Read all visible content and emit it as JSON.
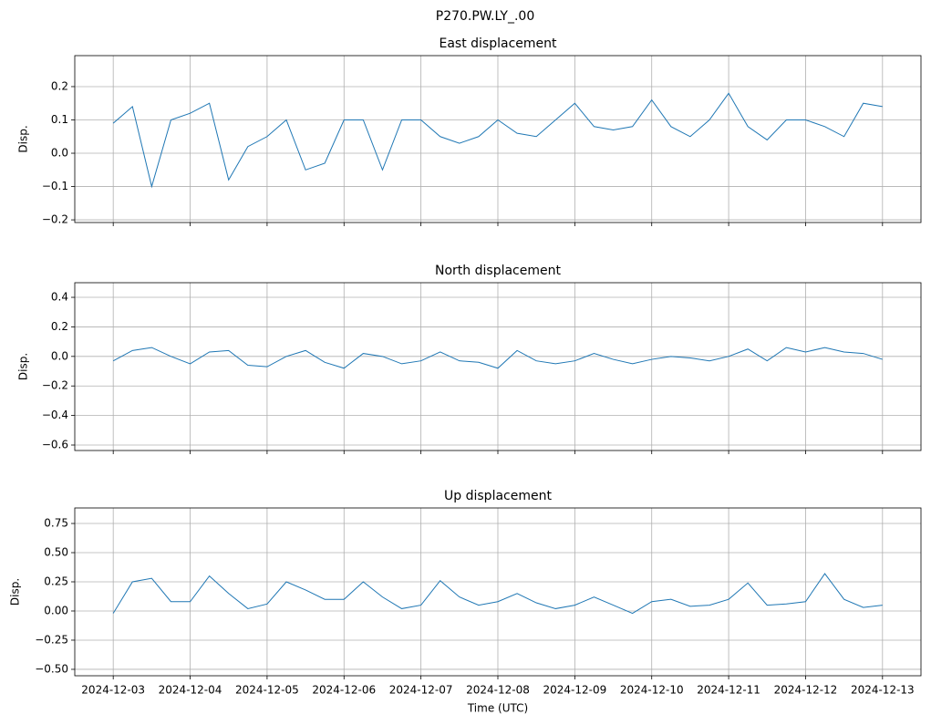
{
  "title": "P270.PW.LY_.00",
  "chart_data": [
    {
      "type": "line",
      "title": "East displacement",
      "y_label": "Disp.",
      "grid": true,
      "xlim": [
        -0.5,
        10.5
      ],
      "xticks": [
        0,
        1,
        2,
        3,
        4,
        5,
        6,
        7,
        8,
        9,
        10
      ],
      "ylim": [
        -0.208,
        0.293
      ],
      "yticks": [
        {
          "value": -0.2,
          "label": "−0.2"
        },
        {
          "value": -0.1,
          "label": "−0.1"
        },
        {
          "value": 0,
          "label": "0.0"
        },
        0.1,
        0.2
      ],
      "x": [
        0,
        0.25,
        0.5,
        0.75,
        1,
        1.25,
        1.5,
        1.75,
        2,
        2.25,
        2.5,
        2.75,
        3,
        3.25,
        3.5,
        3.75,
        4,
        4.25,
        4.5,
        4.75,
        5,
        5.25,
        5.5,
        5.75,
        6,
        6.25,
        6.5,
        6.75,
        7,
        7.25,
        7.5,
        7.75,
        8,
        8.25,
        8.5,
        8.75,
        9,
        9.25,
        9.5,
        9.75,
        10
      ],
      "series": [
        {
          "name": "East",
          "color": "#1f77b4",
          "values": [
            0.09,
            0.14,
            -0.1,
            0.1,
            0.12,
            0.15,
            -0.08,
            0.02,
            0.05,
            0.1,
            -0.05,
            -0.03,
            0.1,
            0.1,
            -0.05,
            0.1,
            0.1,
            0.05,
            0.03,
            0.05,
            0.1,
            0.06,
            0.05,
            0.1,
            0.15,
            0.08,
            0.07,
            0.08,
            0.16,
            0.08,
            0.05,
            0.1,
            0.18,
            0.08,
            0.04,
            0.1,
            0.1,
            0.08,
            0.05,
            0.15,
            0.14
          ]
        }
      ]
    },
    {
      "type": "line",
      "title": "North displacement",
      "y_label": "Disp.",
      "grid": true,
      "xlim": [
        -0.5,
        10.5
      ],
      "xticks": [
        0,
        1,
        2,
        3,
        4,
        5,
        6,
        7,
        8,
        9,
        10
      ],
      "ylim": [
        -0.637,
        0.499
      ],
      "yticks": [
        {
          "value": -0.6,
          "label": "−0.6"
        },
        {
          "value": -0.4,
          "label": "−0.4"
        },
        {
          "value": -0.2,
          "label": "−0.2"
        },
        {
          "value": 0,
          "label": "0.0"
        },
        0.2,
        0.4
      ],
      "x": [
        0,
        0.25,
        0.5,
        0.75,
        1,
        1.25,
        1.5,
        1.75,
        2,
        2.25,
        2.5,
        2.75,
        3,
        3.25,
        3.5,
        3.75,
        4,
        4.25,
        4.5,
        4.75,
        5,
        5.25,
        5.5,
        5.75,
        6,
        6.25,
        6.5,
        6.75,
        7,
        7.25,
        7.5,
        7.75,
        8,
        8.25,
        8.5,
        8.75,
        9,
        9.25,
        9.5,
        9.75,
        10
      ],
      "series": [
        {
          "name": "North",
          "color": "#1f77b4",
          "values": [
            -0.03,
            0.04,
            0.06,
            0.0,
            -0.05,
            0.03,
            0.04,
            -0.06,
            -0.07,
            0.0,
            0.04,
            -0.04,
            -0.08,
            0.02,
            0.0,
            -0.05,
            -0.03,
            0.03,
            -0.03,
            -0.04,
            -0.08,
            0.04,
            -0.03,
            -0.05,
            -0.03,
            0.02,
            -0.02,
            -0.05,
            -0.02,
            0.0,
            -0.01,
            -0.03,
            0.0,
            0.05,
            -0.03,
            0.06,
            0.03,
            0.06,
            0.03,
            0.02,
            -0.02
          ]
        }
      ]
    },
    {
      "type": "line",
      "title": "Up displacement",
      "y_label": "Disp.",
      "x_label": "Time (UTC)",
      "grid": true,
      "xlim": [
        -0.5,
        10.5
      ],
      "xticks": [
        {
          "value": 0,
          "label": "2024-12-03"
        },
        {
          "value": 1,
          "label": "2024-12-04"
        },
        {
          "value": 2,
          "label": "2024-12-05"
        },
        {
          "value": 3,
          "label": "2024-12-06"
        },
        {
          "value": 4,
          "label": "2024-12-07"
        },
        {
          "value": 5,
          "label": "2024-12-08"
        },
        {
          "value": 6,
          "label": "2024-12-09"
        },
        {
          "value": 7,
          "label": "2024-12-10"
        },
        {
          "value": 8,
          "label": "2024-12-11"
        },
        {
          "value": 9,
          "label": "2024-12-12"
        },
        {
          "value": 10,
          "label": "2024-12-13"
        }
      ],
      "ylim": [
        -0.555,
        0.883
      ],
      "yticks": [
        {
          "value": -0.5,
          "label": "−0.50"
        },
        {
          "value": -0.25,
          "label": "−0.25"
        },
        {
          "value": 0,
          "label": "0.00"
        },
        {
          "value": 0.25,
          "label": "0.25"
        },
        {
          "value": 0.5,
          "label": "0.50"
        },
        {
          "value": 0.75,
          "label": "0.75"
        }
      ],
      "x": [
        0,
        0.25,
        0.5,
        0.75,
        1,
        1.25,
        1.5,
        1.75,
        2,
        2.25,
        2.5,
        2.75,
        3,
        3.25,
        3.5,
        3.75,
        4,
        4.25,
        4.5,
        4.75,
        5,
        5.25,
        5.5,
        5.75,
        6,
        6.25,
        6.5,
        6.75,
        7,
        7.25,
        7.5,
        7.75,
        8,
        8.25,
        8.5,
        8.75,
        9,
        9.25,
        9.5,
        9.75,
        10
      ],
      "series": [
        {
          "name": "Up",
          "color": "#1f77b4",
          "values": [
            -0.02,
            0.25,
            0.28,
            0.08,
            0.08,
            0.3,
            0.15,
            0.02,
            0.06,
            0.25,
            0.18,
            0.1,
            0.1,
            0.25,
            0.12,
            0.02,
            0.05,
            0.26,
            0.12,
            0.05,
            0.08,
            0.15,
            0.07,
            0.02,
            0.05,
            0.12,
            0.05,
            -0.02,
            0.08,
            0.1,
            0.04,
            0.05,
            0.1,
            0.24,
            0.05,
            0.06,
            0.08,
            0.32,
            0.1,
            0.03,
            0.05
          ]
        }
      ]
    }
  ]
}
